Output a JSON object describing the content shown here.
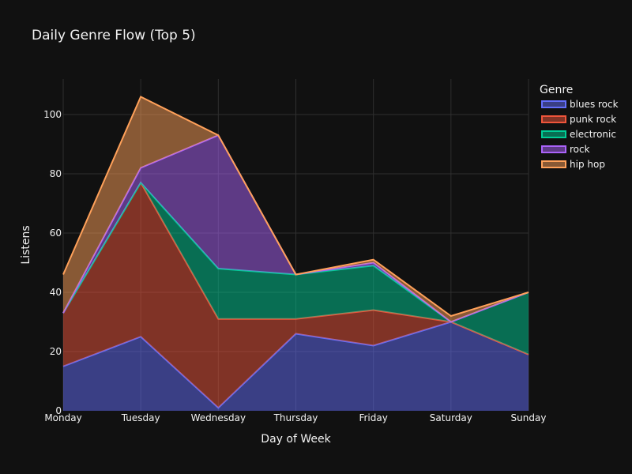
{
  "chart_data": {
    "type": "area",
    "stacked": true,
    "title": "Daily Genre Flow (Top 5)",
    "xlabel": "Day of Week",
    "ylabel": "Listens",
    "categories": [
      "Monday",
      "Tuesday",
      "Wednesday",
      "Thursday",
      "Friday",
      "Saturday",
      "Sunday"
    ],
    "ylim": [
      0,
      112
    ],
    "yticks": [
      0,
      20,
      40,
      60,
      80,
      100
    ],
    "grid": true,
    "legend_title": "Genre",
    "legend_position": "top-right",
    "series": [
      {
        "name": "blues rock",
        "color": "#636efa",
        "values": [
          15,
          25,
          1,
          26,
          22,
          30,
          19
        ]
      },
      {
        "name": "punk rock",
        "color": "#ef553b",
        "values": [
          18,
          52,
          30,
          5,
          12,
          0,
          0
        ]
      },
      {
        "name": "electronic",
        "color": "#00cc96",
        "values": [
          0,
          0,
          17,
          15,
          15,
          0,
          21
        ]
      },
      {
        "name": "rock",
        "color": "#ab63fa",
        "values": [
          0,
          5,
          45,
          0,
          1,
          0,
          0
        ]
      },
      {
        "name": "hip hop",
        "color": "#ffa15a",
        "values": [
          13,
          24,
          0,
          0,
          1,
          2,
          0
        ]
      }
    ]
  }
}
